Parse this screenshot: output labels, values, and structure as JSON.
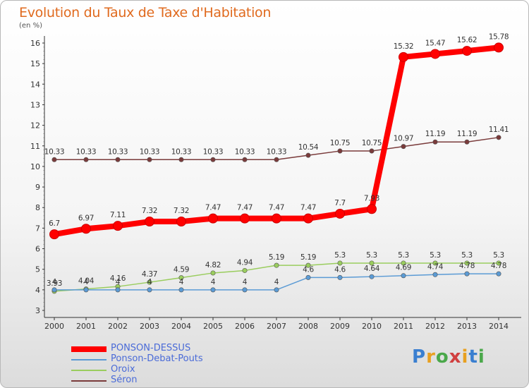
{
  "header": {
    "title": "Evolution du Taux de Taxe d'Habitation",
    "subtitle": "(en %)"
  },
  "logo": {
    "text": "Proxiti"
  },
  "chart_data": {
    "type": "line",
    "title": "Evolution du Taux de Taxe d'Habitation",
    "ylabel": "(en %)",
    "xlabel": "",
    "x": [
      "2000",
      "2001",
      "2002",
      "2003",
      "2004",
      "2005",
      "2006",
      "2007",
      "2008",
      "2009",
      "2010",
      "2011",
      "2012",
      "2013",
      "2014"
    ],
    "ylim": [
      3,
      16
    ],
    "yticks": [
      "3",
      "4",
      "5",
      "6",
      "7",
      "8",
      "9",
      "10",
      "11",
      "12",
      "13",
      "14",
      "15",
      "16"
    ],
    "grid": false,
    "legend": "bottom-left",
    "series": [
      {
        "name": "PONSON-DESSUS",
        "color": "#ff0000",
        "values": [
          6.7,
          6.97,
          7.11,
          7.32,
          7.32,
          7.47,
          7.47,
          7.47,
          7.47,
          7.7,
          7.93,
          15.32,
          15.47,
          15.62,
          15.78
        ],
        "labels": [
          "6.7",
          "6.97",
          "7.11",
          "7.32",
          "7.32",
          "7.47",
          "7.47",
          "7.47",
          "7.47",
          "7.7",
          "7.93",
          "15.32",
          "15.47",
          "15.62",
          "15.78"
        ]
      },
      {
        "name": "Ponson-Debat-Pouts",
        "color": "#5b9bd5",
        "values": [
          4,
          4,
          4,
          4,
          4,
          4,
          4,
          4,
          4.6,
          4.6,
          4.64,
          4.69,
          4.74,
          4.78,
          4.78
        ],
        "labels": [
          "4",
          "4",
          "4",
          "4",
          "4",
          "4",
          "4",
          "4",
          "4.6",
          "4.6",
          "4.64",
          "4.69",
          "4.74",
          "4.78",
          "4.78"
        ]
      },
      {
        "name": "Oroix",
        "color": "#9acd5e",
        "values": [
          3.93,
          4.04,
          4.16,
          4.37,
          4.59,
          4.82,
          4.94,
          5.19,
          5.19,
          5.3,
          5.3,
          5.3,
          5.3,
          5.3,
          5.3
        ],
        "labels": [
          "3.93",
          "4.04",
          "4.16",
          "4.37",
          "4.59",
          "4.82",
          "4.94",
          "5.19",
          "5.19",
          "5.3",
          "5.3",
          "5.3",
          "5.3",
          "5.3",
          "5.3"
        ]
      },
      {
        "name": "Séron",
        "color": "#7a3b3b",
        "values": [
          10.33,
          10.33,
          10.33,
          10.33,
          10.33,
          10.33,
          10.33,
          10.33,
          10.54,
          10.75,
          10.75,
          10.97,
          11.19,
          11.19,
          11.41
        ],
        "labels": [
          "10.33",
          "10.33",
          "10.33",
          "10.33",
          "10.33",
          "10.33",
          "10.33",
          "10.33",
          "10.54",
          "10.75",
          "10.75",
          "10.97",
          "11.19",
          "11.19",
          "11.41"
        ]
      }
    ]
  }
}
